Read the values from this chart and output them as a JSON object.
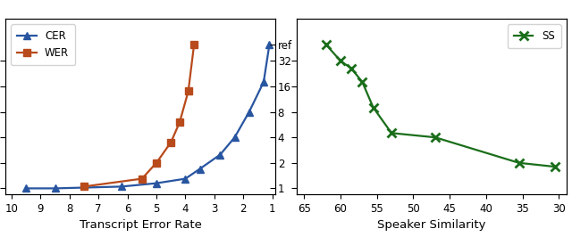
{
  "left_plot": {
    "xlabel": "Transcript Error Rate",
    "cer_x": [
      9.5,
      8.5,
      6.2,
      5.0,
      4.0,
      3.5,
      2.8,
      2.3,
      1.8,
      1.3,
      1.1
    ],
    "cer_y": [
      1.0,
      1.0,
      1.05,
      1.15,
      1.3,
      1.7,
      2.5,
      4.0,
      8.0,
      18.0,
      50.0
    ],
    "wer_x": [
      7.5,
      5.5,
      5.0,
      4.5,
      4.2,
      3.9,
      3.7
    ],
    "wer_y": [
      1.05,
      1.3,
      2.0,
      3.5,
      6.0,
      14.0,
      50.0
    ],
    "cer_color": "#2855a0",
    "wer_color": "#b84a1b",
    "xticks": [
      10,
      9,
      8,
      7,
      6,
      5,
      4,
      3,
      2,
      1
    ],
    "xtick_labels": [
      "10",
      "9",
      "8",
      "7",
      "6",
      "5",
      "4",
      "3",
      "2",
      "1"
    ],
    "xlim": [
      10.2,
      0.9
    ],
    "yticks": [
      1,
      2,
      4,
      8,
      16,
      32
    ],
    "yticklabels": [
      "1",
      "2",
      "4",
      "8",
      "16",
      "32"
    ],
    "right_yticks": [
      50.0
    ],
    "right_yticklabels": [
      "ref"
    ],
    "ylim": [
      0.85,
      100
    ]
  },
  "right_plot": {
    "xlabel": "Speaker Similarity",
    "ss_x": [
      62.0,
      60.0,
      58.5,
      57.0,
      55.5,
      53.0,
      47.0,
      35.5,
      30.5
    ],
    "ss_y": [
      50.0,
      32.0,
      26.0,
      18.0,
      9.0,
      4.5,
      4.0,
      2.0,
      1.8
    ],
    "ss_color": "#1a6e1a",
    "xticks": [
      65,
      60,
      55,
      50,
      45,
      40,
      35,
      30
    ],
    "xtick_labels": [
      "65",
      "60",
      "55",
      "50",
      "45",
      "40",
      "35",
      "30"
    ],
    "xlim": [
      66,
      29
    ],
    "yticks": [
      1,
      2,
      4,
      8,
      16,
      32
    ],
    "ylim": [
      0.85,
      100
    ]
  }
}
